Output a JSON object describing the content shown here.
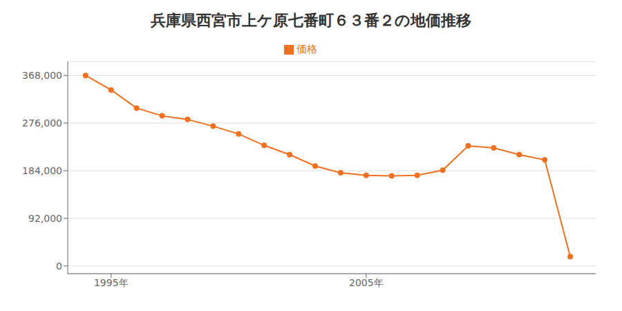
{
  "chart_data": {
    "type": "line",
    "title": "兵庫県西宮市上ケ原七番町６３番２の地価推移",
    "x": [
      1994,
      1995,
      1996,
      1997,
      1998,
      1999,
      2000,
      2001,
      2002,
      2003,
      2004,
      2005,
      2006,
      2007,
      2008,
      2009,
      2010,
      2011,
      2012,
      2013
    ],
    "series": [
      {
        "name": "価格",
        "color": "#f07020",
        "values": [
          368000,
          340000,
          305000,
          290000,
          283000,
          270000,
          255000,
          233000,
          215000,
          193000,
          180000,
          175000,
          174000,
          175000,
          185000,
          232000,
          228000,
          215000,
          205000,
          18000
        ]
      }
    ],
    "xlim": [
      1993.3,
      2014.0
    ],
    "xticks": [
      {
        "value": 1995,
        "label": "1995年"
      },
      {
        "value": 2005,
        "label": "2005年"
      }
    ],
    "ylim": [
      -15000,
      395000
    ],
    "yticks": [
      0,
      {
        "value": 92000,
        "label": "92,000"
      },
      {
        "value": 184000,
        "label": "184,000"
      },
      {
        "value": 276000,
        "label": "276,000"
      },
      {
        "value": 368000,
        "label": "368,000"
      }
    ],
    "grid": true,
    "legend": "top",
    "marker": "circle"
  }
}
